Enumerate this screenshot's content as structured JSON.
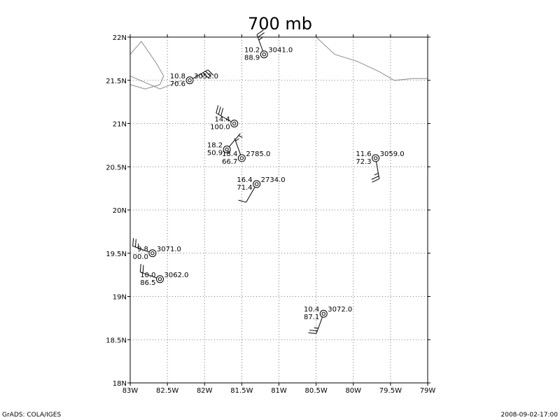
{
  "title": "700 mb",
  "footer_left": "GrADS: COLA/IGES",
  "footer_right": "2008-09-02-17:00",
  "map": {
    "lon_range": [
      -83,
      -79
    ],
    "lat_range": [
      18,
      22
    ],
    "lon_ticks": [
      {
        "value": -83,
        "label": "83W"
      },
      {
        "value": -82.5,
        "label": "82.5W"
      },
      {
        "value": -82,
        "label": "82W"
      },
      {
        "value": -81.5,
        "label": "81.5W"
      },
      {
        "value": -81,
        "label": "81W"
      },
      {
        "value": -80.5,
        "label": "80.5W"
      },
      {
        "value": -80,
        "label": "80W"
      },
      {
        "value": -79.5,
        "label": "79.5W"
      },
      {
        "value": -79,
        "label": "79W"
      }
    ],
    "lat_ticks": [
      {
        "value": 18,
        "label": "18N"
      },
      {
        "value": 18.5,
        "label": "18.5N"
      },
      {
        "value": 19,
        "label": "19N"
      },
      {
        "value": 19.5,
        "label": "19.5N"
      },
      {
        "value": 20,
        "label": "20N"
      },
      {
        "value": 20.5,
        "label": "20.5N"
      },
      {
        "value": 21,
        "label": "21N"
      },
      {
        "value": 21.5,
        "label": "21.5N"
      },
      {
        "value": 22,
        "label": "22N"
      }
    ],
    "grid": true,
    "coastlines": [
      [
        [
          -83,
          21.8
        ],
        [
          -82.85,
          21.95
        ],
        [
          -82.65,
          21.7
        ],
        [
          -82.55,
          21.55
        ],
        [
          -82.6,
          21.45
        ],
        [
          -82.8,
          21.4
        ],
        [
          -83,
          21.45
        ]
      ],
      [
        [
          -83,
          21.55
        ],
        [
          -82.6,
          21.4
        ],
        [
          -82.3,
          21.5
        ]
      ],
      [
        [
          -80.5,
          22
        ],
        [
          -80.25,
          21.8
        ],
        [
          -79.95,
          21.72
        ],
        [
          -79.65,
          21.6
        ],
        [
          -79.45,
          21.5
        ],
        [
          -79.2,
          21.52
        ],
        [
          -79,
          21.52
        ]
      ]
    ],
    "stations": [
      {
        "lon": -81.2,
        "lat": 21.8,
        "temp": "10.2",
        "rh": "88.9",
        "height": "3041.0",
        "wind_dir": 340,
        "wind_kt": 25
      },
      {
        "lon": -82.2,
        "lat": 21.5,
        "temp": "10.8",
        "rh": "70.6",
        "height": "3052.0",
        "wind_dir": 60,
        "wind_kt": 35
      },
      {
        "lon": -81.6,
        "lat": 21.0,
        "temp": "14.4",
        "rh": "100.0",
        "height": "",
        "wind_dir": 300,
        "wind_kt": 30
      },
      {
        "lon": -81.7,
        "lat": 20.7,
        "temp": "18.2",
        "rh": "50.9",
        "height": "",
        "wind_dir": 40,
        "wind_kt": 5
      },
      {
        "lon": -81.5,
        "lat": 20.6,
        "temp": "18.4",
        "rh": "66.7",
        "height": "2785.0",
        "wind_dir": 340,
        "wind_kt": 5
      },
      {
        "lon": -81.3,
        "lat": 20.3,
        "temp": "16.4",
        "rh": "71.4",
        "height": "2734.0",
        "wind_dir": 210,
        "wind_kt": 10
      },
      {
        "lon": -79.7,
        "lat": 20.6,
        "temp": "11.6",
        "rh": "72.3",
        "height": "3059.0",
        "wind_dir": 170,
        "wind_kt": 25
      },
      {
        "lon": -82.7,
        "lat": 19.5,
        "temp": "9.8",
        "rh": "00.0",
        "height": "3071.0",
        "wind_dir": 290,
        "wind_kt": 25
      },
      {
        "lon": -82.6,
        "lat": 19.2,
        "temp": "10.0",
        "rh": "86.5",
        "height": "3062.0",
        "wind_dir": 290,
        "wind_kt": 20
      },
      {
        "lon": -80.4,
        "lat": 18.8,
        "temp": "10.4",
        "rh": "87.1",
        "height": "3072.0",
        "wind_dir": 200,
        "wind_kt": 25
      }
    ]
  }
}
